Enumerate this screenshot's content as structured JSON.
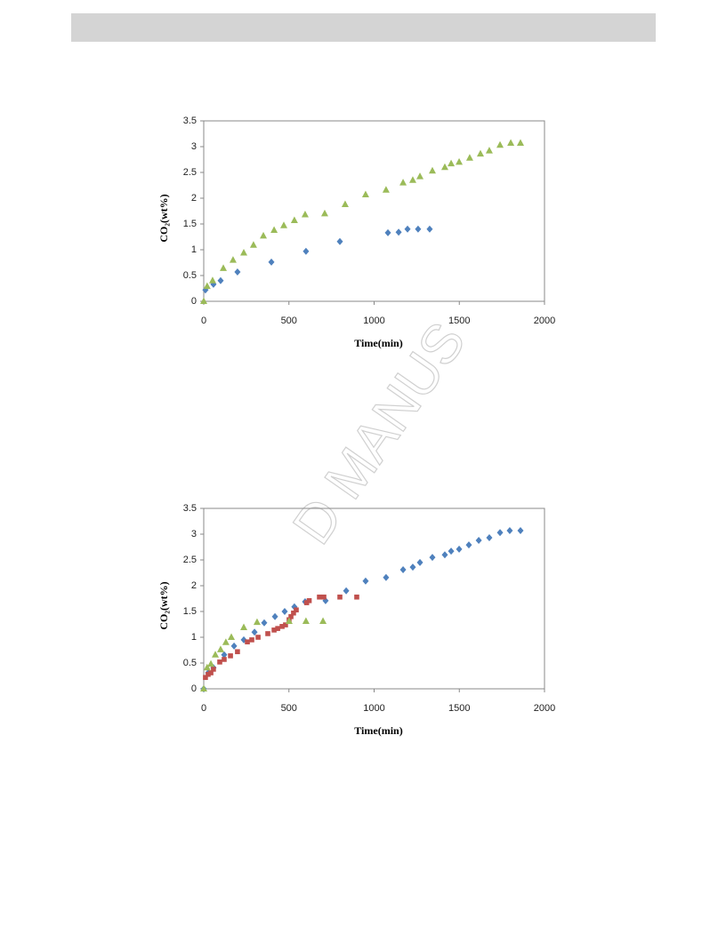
{
  "watermark": "D MANUS",
  "chart_data": [
    {
      "type": "scatter",
      "x_label": "Time(min)",
      "y_label": "CO₂(wt%)",
      "xlim": [
        0,
        2000
      ],
      "ylim": [
        0,
        3.5
      ],
      "xticks": [
        0,
        500,
        1000,
        1500,
        2000
      ],
      "yticks": [
        0,
        0.5,
        1,
        1.5,
        2,
        2.5,
        3,
        3.5
      ],
      "series": [
        {
          "color": "#4f81bd",
          "marker": "diamond",
          "x": [
            10,
            57,
            99,
            198,
            397,
            600,
            799,
            1081,
            1144,
            1196,
            1258,
            1326
          ],
          "values": [
            0.22,
            0.33,
            0.4,
            0.57,
            0.76,
            0.97,
            1.16,
            1.33,
            1.34,
            1.4,
            1.4,
            1.4
          ]
        },
        {
          "color": "#9bbb59",
          "marker": "triangle",
          "x": [
            0,
            20,
            52,
            115,
            172,
            235,
            292,
            350,
            413,
            470,
            532,
            595,
            710,
            830,
            950,
            1070,
            1170,
            1227,
            1269,
            1342,
            1415,
            1452,
            1499,
            1561,
            1624,
            1676,
            1739,
            1802,
            1859
          ],
          "values": [
            0,
            0.29,
            0.4,
            0.64,
            0.8,
            0.94,
            1.09,
            1.27,
            1.38,
            1.47,
            1.57,
            1.68,
            1.7,
            1.88,
            2.07,
            2.16,
            2.3,
            2.35,
            2.42,
            2.53,
            2.6,
            2.67,
            2.7,
            2.78,
            2.86,
            2.92,
            3.03,
            3.07,
            3.07
          ]
        }
      ]
    },
    {
      "type": "scatter",
      "x_label": "Time(min)",
      "y_label": "CO₂(wt%)",
      "xlim": [
        0,
        2000
      ],
      "ylim": [
        0,
        3.5
      ],
      "xticks": [
        0,
        500,
        1000,
        1500,
        2000
      ],
      "yticks": [
        0,
        0.5,
        1,
        1.5,
        2,
        2.5,
        3,
        3.5
      ],
      "series": [
        {
          "color": "#4f81bd",
          "marker": "diamond",
          "x": [
            0,
            26,
            57,
            120,
            178,
            235,
            298,
            355,
            418,
            475,
            532,
            595,
            715,
            836,
            950,
            1070,
            1170,
            1227,
            1269,
            1342,
            1415,
            1452,
            1499,
            1556,
            1614,
            1676,
            1739,
            1796,
            1859
          ],
          "values": [
            0,
            0.31,
            0.41,
            0.66,
            0.83,
            0.95,
            1.1,
            1.28,
            1.4,
            1.5,
            1.59,
            1.69,
            1.71,
            1.9,
            2.09,
            2.16,
            2.31,
            2.36,
            2.45,
            2.55,
            2.6,
            2.67,
            2.71,
            2.79,
            2.88,
            2.93,
            3.03,
            3.07,
            3.07
          ]
        },
        {
          "color": "#c0504d",
          "marker": "square",
          "x": [
            10,
            26,
            42,
            57,
            94,
            120,
            157,
            198,
            256,
            282,
            319,
            376,
            413,
            434,
            460,
            480,
            501,
            512,
            527,
            543,
            604,
            619,
            679,
            705,
            799,
            898
          ],
          "values": [
            0.22,
            0.28,
            0.31,
            0.38,
            0.52,
            0.57,
            0.64,
            0.72,
            0.91,
            0.95,
            1.0,
            1.07,
            1.14,
            1.17,
            1.21,
            1.24,
            1.34,
            1.4,
            1.47,
            1.53,
            1.67,
            1.71,
            1.78,
            1.78,
            1.78,
            1.78
          ]
        },
        {
          "color": "#9bbb59",
          "marker": "triangle",
          "x": [
            0,
            20,
            42,
            68,
            99,
            130,
            162,
            235,
            313,
            501,
            600,
            700
          ],
          "values": [
            0,
            0.41,
            0.48,
            0.66,
            0.76,
            0.9,
            1.0,
            1.19,
            1.29,
            1.31,
            1.31,
            1.31
          ]
        }
      ]
    }
  ]
}
